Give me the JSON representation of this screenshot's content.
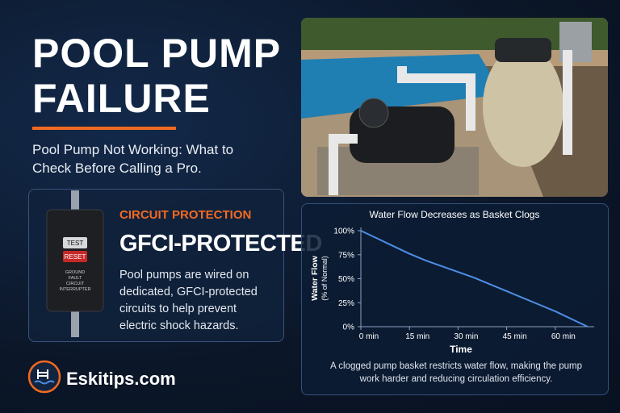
{
  "header": {
    "title_lines": [
      "POOL PUMP",
      "FAILURE"
    ],
    "subtitle": "Pool Pump Not Working: What to Check Before Calling a Pro."
  },
  "gfci_card": {
    "device_buttons": [
      "TEST",
      "RESET"
    ],
    "device_label": [
      "GROUND",
      "FAULT",
      "CIRCUIT",
      "INTERRUPTER"
    ],
    "kicker": "CIRCUIT PROTECTION",
    "headline": "GFCI-PROTECTED",
    "body": "Pool pumps are wired on dedicated, GFCI-protected circuits to help prevent electric shock hazards."
  },
  "brand": {
    "name": "Eskitips.com"
  },
  "chart_data": {
    "type": "line",
    "title": "Water Flow Decreases as Basket Clogs",
    "y_label_lines": [
      "Water Flow",
      "(% of Normal)"
    ],
    "x_label": "Time",
    "caption": "A clogged pump basket restricts water flow, making the pump work harder and reducing circulation efficiency.",
    "series": [
      {
        "color": "#4d8fe6",
        "x": [
          0,
          5,
          10,
          15,
          20,
          25,
          30,
          35,
          40,
          45,
          50,
          55,
          60,
          65,
          70
        ],
        "values": [
          100,
          92,
          84,
          76,
          69,
          63,
          57,
          51,
          44,
          37,
          30,
          23,
          16,
          8,
          0
        ]
      }
    ],
    "xlim": [
      0,
      70
    ],
    "ylim": [
      0,
      100
    ],
    "xticks": [
      {
        "value": 0,
        "label": "0 min"
      },
      {
        "value": 15,
        "label": "15 min"
      },
      {
        "value": 30,
        "label": "30 min"
      },
      {
        "value": 45,
        "label": "45 min"
      },
      {
        "value": 60,
        "label": "60 min"
      }
    ],
    "yticks": [
      {
        "value": 0,
        "label": "0%"
      },
      {
        "value": 25,
        "label": "25%"
      },
      {
        "value": 50,
        "label": "50%"
      },
      {
        "value": 75,
        "label": "75%"
      },
      {
        "value": 100,
        "label": "100%"
      }
    ]
  }
}
